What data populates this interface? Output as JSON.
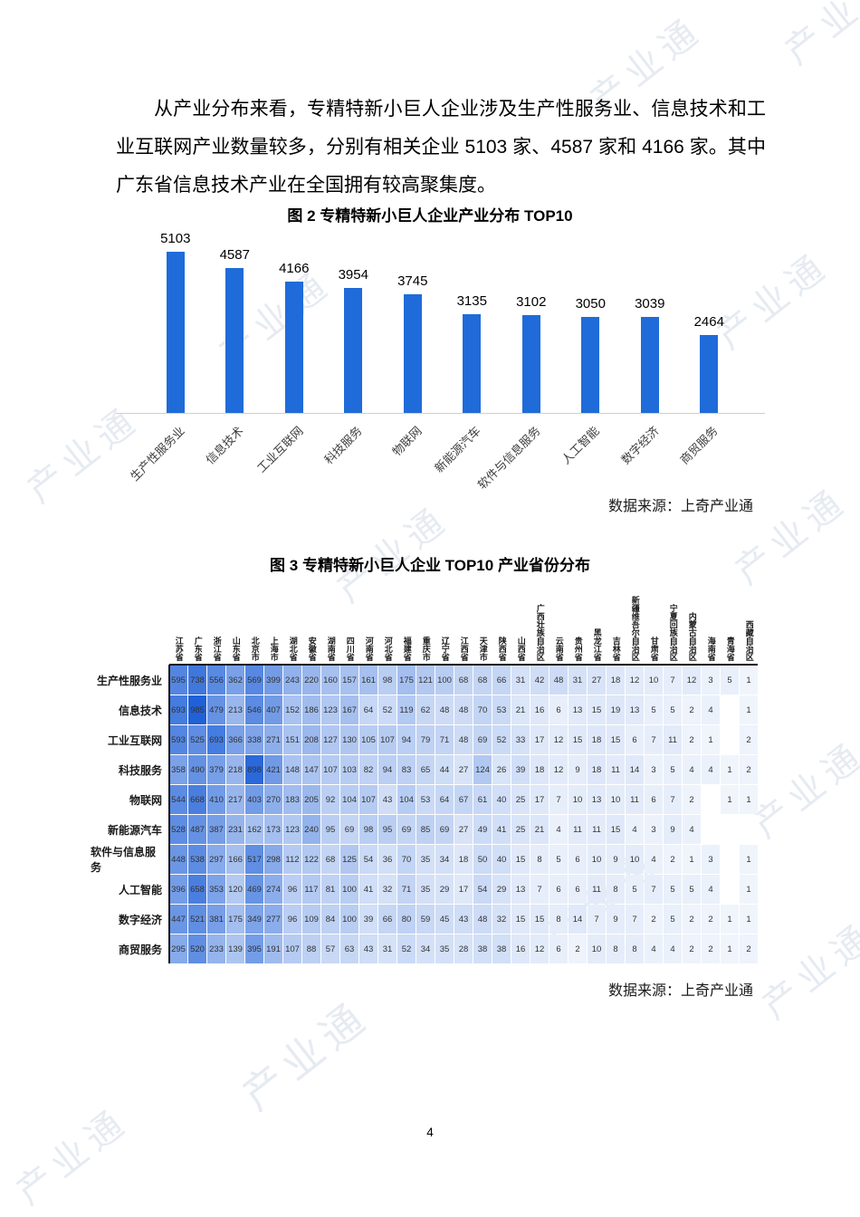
{
  "page": {
    "number": "4",
    "watermark": "产业通"
  },
  "paragraph": "从产业分布来看，专精特新小巨人企业涉及生产性服务业、信息技术和工业互联网产业数量较多，分别有相关企业 5103 家、4587 家和 4166 家。其中广东省信息技术产业在全国拥有较高聚集度。",
  "chart_data": [
    {
      "id": "figure2",
      "type": "bar",
      "title": "图 2 专精特新小巨人企业产业分布 TOP10",
      "source": "数据来源：上奇产业通",
      "categories": [
        "生产性服务业",
        "信息技术",
        "工业互联网",
        "科技服务",
        "物联网",
        "新能源汽车",
        "软件与信息服务",
        "人工智能",
        "数字经济",
        "商贸服务"
      ],
      "values": [
        5103,
        4587,
        4166,
        3954,
        3745,
        3135,
        3102,
        3050,
        3039,
        2464
      ],
      "bar_color": "#1f6bd9",
      "ylim": [
        0,
        5500
      ],
      "data_labels": true,
      "grid": false,
      "legend": "none",
      "xlabel": "",
      "ylabel": ""
    },
    {
      "id": "figure3",
      "type": "heatmap",
      "title": "图 3 专精特新小巨人企业 TOP10 产业省份分布",
      "source": "数据来源：上奇产业通",
      "columns": [
        "江苏省",
        "广东省",
        "浙江省",
        "山东省",
        "北京市",
        "上海市",
        "湖北省",
        "安徽省",
        "湖南省",
        "四川省",
        "河南省",
        "河北省",
        "福建省",
        "重庆市",
        "辽宁省",
        "江西省",
        "天津市",
        "陕西省",
        "山西省",
        "广西壮族自治区",
        "云南省",
        "贵州省",
        "黑龙江省",
        "吉林省",
        "新疆维吾尔自治区",
        "甘肃省",
        "宁夏回族自治区",
        "内蒙古自治区",
        "海南省",
        "青海省",
        "西藏自治区"
      ],
      "rows": [
        "生产性服务业",
        "信息技术",
        "工业互联网",
        "科技服务",
        "物联网",
        "新能源汽车",
        "软件与信息服务",
        "人工智能",
        "数字经济",
        "商贸服务"
      ],
      "values": [
        [
          595,
          738,
          556,
          362,
          569,
          399,
          243,
          220,
          160,
          157,
          161,
          98,
          175,
          121,
          100,
          68,
          68,
          66,
          31,
          42,
          48,
          31,
          27,
          18,
          12,
          10,
          7,
          12,
          3,
          5,
          1
        ],
        [
          693,
          985,
          479,
          213,
          546,
          407,
          152,
          186,
          123,
          167,
          64,
          52,
          119,
          62,
          48,
          48,
          70,
          53,
          21,
          16,
          6,
          13,
          15,
          19,
          13,
          5,
          5,
          2,
          4,
          null,
          1
        ],
        [
          593,
          525,
          693,
          366,
          338,
          271,
          151,
          208,
          127,
          130,
          105,
          107,
          94,
          79,
          71,
          48,
          69,
          52,
          33,
          17,
          12,
          15,
          18,
          15,
          6,
          7,
          11,
          2,
          1,
          null,
          2
        ],
        [
          358,
          490,
          379,
          218,
          898,
          421,
          148,
          147,
          107,
          103,
          82,
          94,
          83,
          65,
          44,
          27,
          124,
          26,
          39,
          18,
          12,
          9,
          18,
          11,
          14,
          3,
          5,
          4,
          4,
          1,
          2
        ],
        [
          544,
          668,
          410,
          217,
          403,
          270,
          183,
          205,
          92,
          104,
          107,
          43,
          104,
          53,
          64,
          67,
          61,
          40,
          25,
          17,
          7,
          10,
          13,
          10,
          11,
          6,
          7,
          2,
          null,
          1,
          1
        ],
        [
          528,
          487,
          387,
          231,
          162,
          173,
          123,
          240,
          95,
          69,
          98,
          95,
          69,
          85,
          69,
          27,
          49,
          41,
          25,
          21,
          4,
          11,
          11,
          15,
          4,
          3,
          9,
          4,
          null,
          null,
          null
        ],
        [
          448,
          538,
          297,
          166,
          517,
          298,
          112,
          122,
          68,
          125,
          54,
          36,
          70,
          35,
          34,
          18,
          50,
          40,
          15,
          8,
          5,
          6,
          10,
          9,
          10,
          4,
          2,
          1,
          3,
          null,
          1
        ],
        [
          396,
          658,
          353,
          120,
          469,
          274,
          96,
          117,
          81,
          100,
          41,
          32,
          71,
          35,
          29,
          17,
          54,
          29,
          13,
          7,
          6,
          6,
          11,
          8,
          5,
          7,
          5,
          5,
          4,
          null,
          1
        ],
        [
          447,
          521,
          381,
          175,
          349,
          277,
          96,
          109,
          84,
          100,
          39,
          66,
          80,
          59,
          45,
          43,
          48,
          32,
          15,
          15,
          8,
          14,
          7,
          9,
          7,
          2,
          5,
          2,
          2,
          1,
          1
        ],
        [
          295,
          520,
          233,
          139,
          395,
          191,
          107,
          88,
          57,
          63,
          43,
          31,
          52,
          34,
          35,
          28,
          38,
          38,
          16,
          12,
          6,
          2,
          10,
          8,
          8,
          4,
          4,
          2,
          2,
          1,
          2
        ]
      ],
      "color_scale": {
        "min_color": "#f5f8fd",
        "max_color": "#2061d8",
        "max_value": 985,
        "null_color": "#ffffff"
      }
    }
  ]
}
